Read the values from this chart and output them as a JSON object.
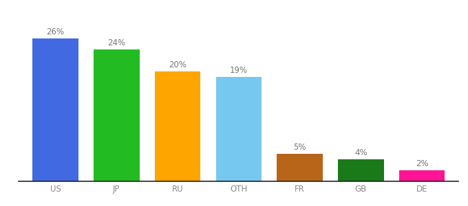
{
  "categories": [
    "US",
    "JP",
    "RU",
    "OTH",
    "FR",
    "GB",
    "DE"
  ],
  "values": [
    26,
    24,
    20,
    19,
    5,
    4,
    2
  ],
  "labels": [
    "26%",
    "24%",
    "20%",
    "19%",
    "5%",
    "4%",
    "2%"
  ],
  "bar_colors": [
    "#4169e1",
    "#22bb22",
    "#ffa500",
    "#76c8f0",
    "#b8651a",
    "#1a7a1a",
    "#ff1493"
  ],
  "label_fontsize": 8.5,
  "tick_fontsize": 8.5,
  "background_color": "#ffffff",
  "ylim": [
    0,
    30
  ],
  "bar_width": 0.75
}
